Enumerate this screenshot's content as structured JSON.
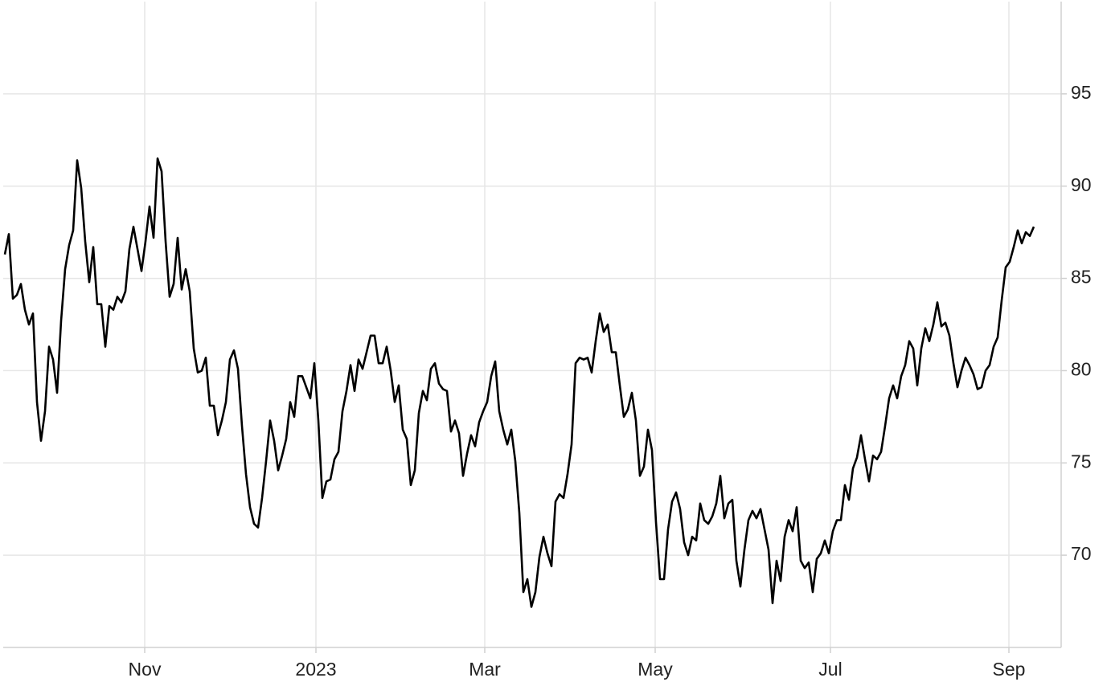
{
  "chart_data": {
    "type": "line",
    "series": [
      {
        "color": "#000000",
        "values": [
          86.3,
          87.4,
          83.9,
          84.1,
          84.7,
          83.3,
          82.5,
          83.1,
          78.3,
          76.2,
          77.8,
          81.3,
          80.6,
          78.8,
          82.7,
          85.5,
          86.8,
          87.6,
          91.4,
          89.9,
          87.0,
          84.8,
          86.7,
          83.6,
          83.6,
          81.3,
          83.5,
          83.3,
          84.0,
          83.7,
          84.3,
          86.6,
          87.8,
          86.6,
          85.4,
          87.0,
          88.9,
          87.2,
          91.5,
          90.8,
          87.0,
          84.0,
          84.7,
          87.2,
          84.4,
          85.5,
          84.3,
          81.2,
          79.9,
          80.0,
          80.7,
          78.1,
          78.1,
          76.5,
          77.3,
          78.3,
          80.6,
          81.1,
          80.1,
          77.0,
          74.4,
          72.6,
          71.7,
          71.5,
          73.1,
          75.1,
          77.3,
          76.2,
          74.6,
          75.4,
          76.3,
          78.3,
          77.5,
          79.7,
          79.7,
          79.1,
          78.5,
          80.4,
          77.3,
          73.1,
          74.0,
          74.1,
          75.2,
          75.6,
          77.8,
          78.9,
          80.3,
          78.9,
          80.6,
          80.1,
          81.0,
          81.9,
          81.9,
          80.4,
          80.4,
          81.3,
          80.0,
          78.3,
          79.2,
          76.8,
          76.3,
          73.8,
          74.6,
          77.7,
          78.9,
          78.4,
          80.1,
          80.4,
          79.3,
          79.0,
          78.9,
          76.7,
          77.3,
          76.6,
          74.3,
          75.5,
          76.5,
          75.9,
          77.2,
          77.8,
          78.3,
          79.7,
          80.5,
          77.8,
          76.8,
          76.0,
          76.8,
          75.1,
          72.3,
          68.0,
          68.7,
          67.2,
          68.0,
          69.9,
          71.0,
          70.1,
          69.4,
          72.9,
          73.3,
          73.1,
          74.4,
          76.0,
          80.4,
          80.7,
          80.6,
          80.7,
          79.9,
          81.6,
          83.1,
          82.1,
          82.5,
          81.0,
          81.0,
          79.2,
          77.5,
          77.9,
          78.8,
          77.3,
          74.3,
          74.8,
          76.8,
          75.7,
          71.8,
          68.7,
          68.7,
          71.4,
          72.9,
          73.4,
          72.5,
          70.7,
          70.0,
          71.0,
          70.8,
          72.8,
          71.9,
          71.7,
          72.1,
          72.8,
          74.3,
          72.0,
          72.8,
          73.0,
          69.7,
          68.3,
          70.3,
          71.9,
          72.4,
          72.0,
          72.5,
          71.4,
          70.3,
          67.4,
          69.7,
          68.6,
          71.0,
          71.9,
          71.3,
          72.6,
          69.7,
          69.3,
          69.6,
          68.0,
          69.8,
          70.1,
          70.8,
          70.1,
          71.3,
          71.9,
          71.9,
          73.8,
          73.0,
          74.7,
          75.3,
          76.5,
          75.2,
          74.0,
          75.4,
          75.2,
          75.6,
          77.0,
          78.5,
          79.2,
          78.5,
          79.7,
          80.3,
          81.6,
          81.2,
          79.2,
          81.2,
          82.3,
          81.6,
          82.5,
          83.7,
          82.4,
          82.6,
          81.9,
          80.4,
          79.1,
          80.0,
          80.7,
          80.3,
          79.8,
          79.0,
          79.1,
          80.0,
          80.3,
          81.3,
          81.8,
          83.8,
          85.6,
          85.9,
          86.7,
          87.6,
          86.9,
          87.5,
          87.3,
          87.8
        ]
      }
    ],
    "xlim": [
      -0.4,
      262.8
    ],
    "xticks": [
      {
        "value": 34.8,
        "label": "Nov"
      },
      {
        "value": 77.4,
        "label": "2023"
      },
      {
        "value": 119.4,
        "label": "Mar"
      },
      {
        "value": 161.8,
        "label": "May"
      },
      {
        "value": 205.4,
        "label": "Jul"
      },
      {
        "value": 249.8,
        "label": "Sep"
      }
    ],
    "ylim": [
      65,
      100
    ],
    "yticks": [
      70,
      75,
      80,
      85,
      90,
      95
    ],
    "grid": true
  }
}
